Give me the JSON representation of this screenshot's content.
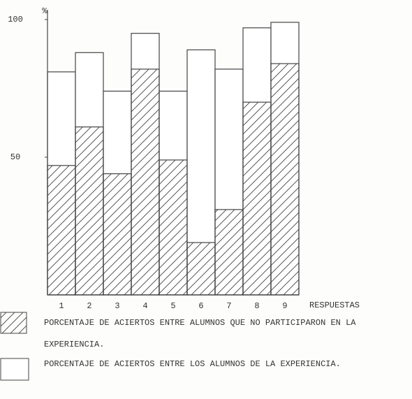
{
  "chart_data": {
    "type": "overlap_bar",
    "y_axis_label": "%",
    "x_axis_label": "RESPUESTAS",
    "categories": [
      "1",
      "2",
      "3",
      "4",
      "5",
      "6",
      "7",
      "8",
      "9"
    ],
    "series": [
      {
        "name": "PORCENTAJE DE ACIERTOS ENTRE ALUMNOS QUE NO PARTICIPARON EN LA EXPERIENCIA.",
        "color": "#ffffff",
        "hatch": true,
        "values": [
          47,
          61,
          44,
          82,
          49,
          19,
          31,
          70,
          84
        ]
      },
      {
        "name": "PORCENTAJE DE ACIERTOS ENTRE LOS ALUMNOS DE LA EXPERIENCIA.",
        "color": "#ffffff",
        "hatch": false,
        "values": [
          81,
          88,
          74,
          95,
          74,
          89,
          82,
          97,
          99
        ]
      }
    ],
    "ylim": [
      0,
      100
    ],
    "yticks": [
      50,
      100
    ],
    "grid": false
  }
}
